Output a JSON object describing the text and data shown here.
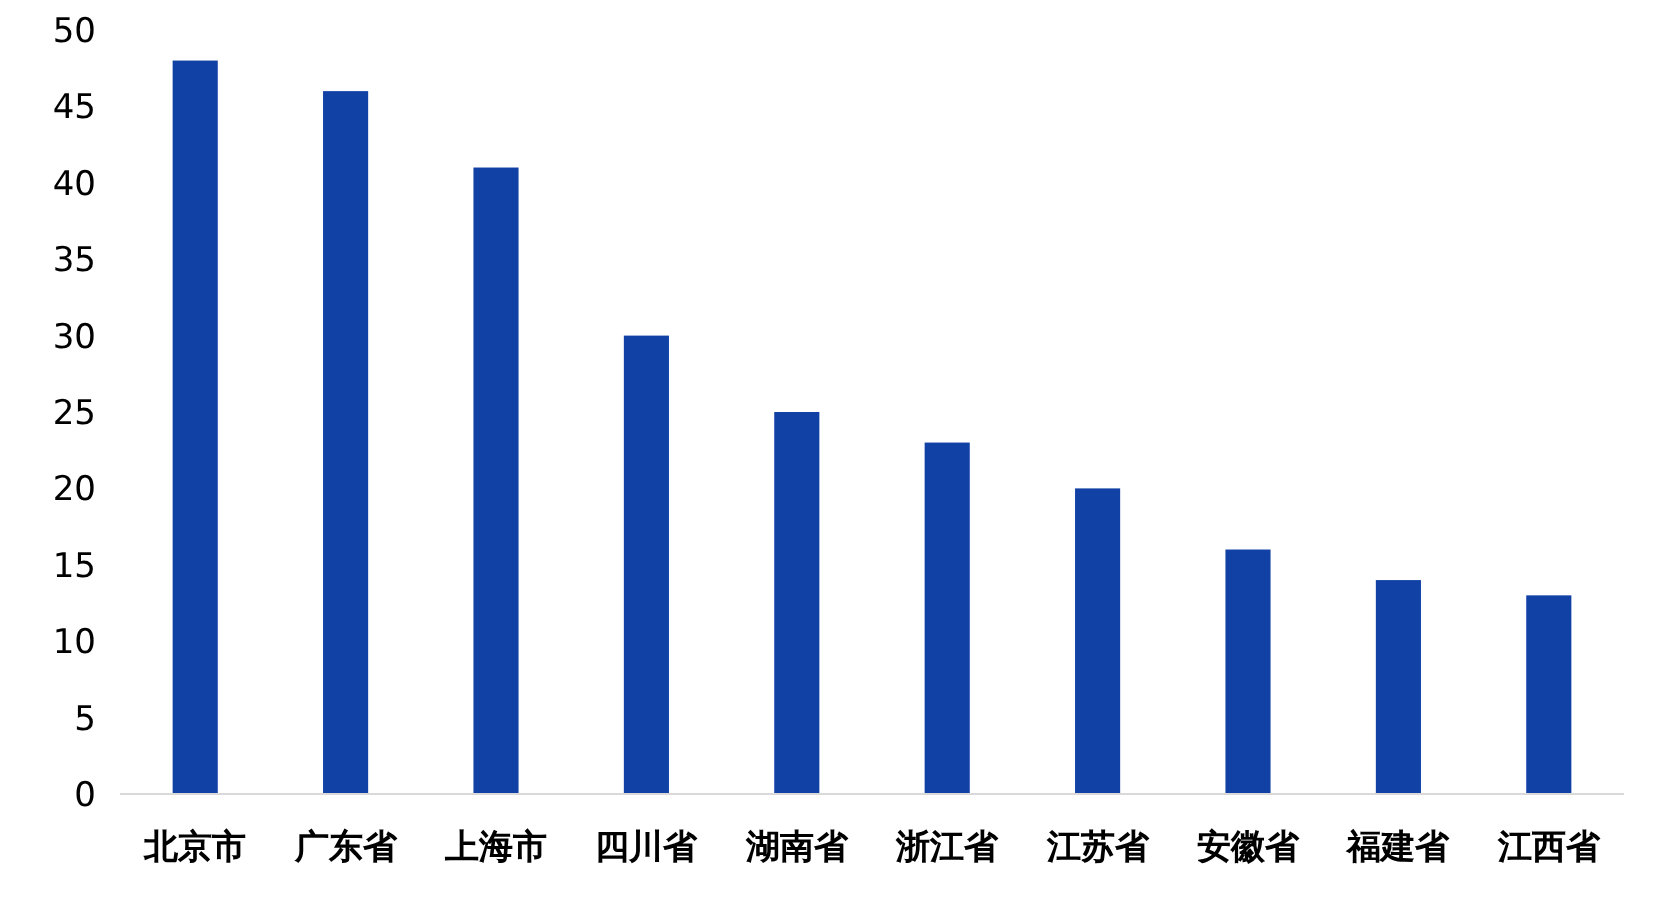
{
  "chart_data": {
    "type": "bar",
    "categories": [
      "北京市",
      "广东省",
      "上海市",
      "四川省",
      "湖南省",
      "浙江省",
      "江苏省",
      "安徽省",
      "福建省",
      "江西省"
    ],
    "values": [
      48,
      46,
      41,
      30,
      25,
      23,
      20,
      16,
      14,
      13
    ],
    "color": "#1241a6",
    "ylim": [
      0,
      50
    ],
    "yticks": [
      0,
      5,
      10,
      15,
      20,
      25,
      30,
      35,
      40,
      45,
      50
    ]
  }
}
